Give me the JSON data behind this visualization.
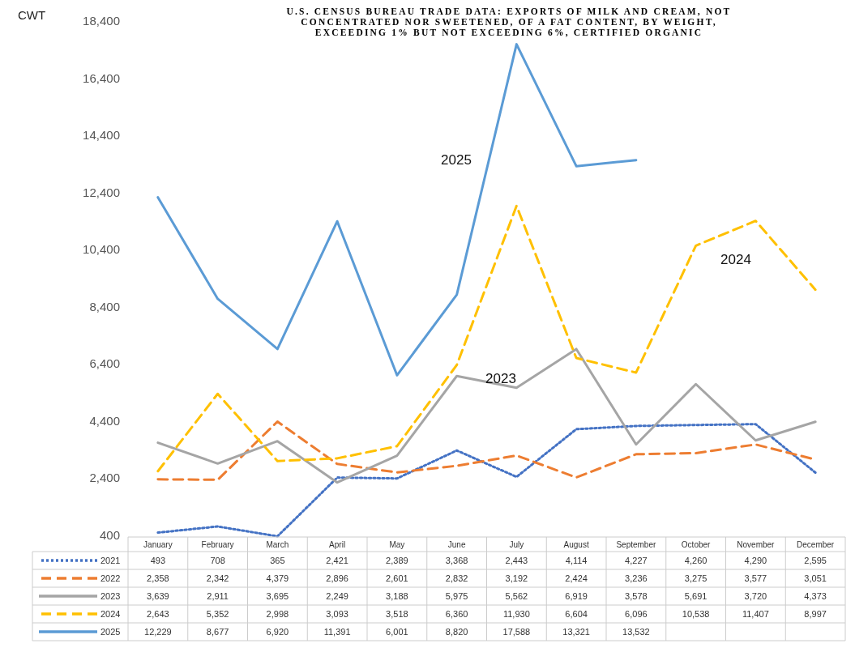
{
  "chart_data": {
    "type": "line",
    "title": "U.S. CENSUS BUREAU TRADE DATA: EXPORTS OF MILK AND CREAM, NOT CONCENTRATED NOR SWEETENED, OF A FAT CONTENT, BY WEIGHT, EXCEEDING 1% BUT NOT EXCEEDING 6%, CERTIFIED ORGANIC",
    "ylabel": "CWT",
    "categories": [
      "January",
      "February",
      "March",
      "April",
      "May",
      "June",
      "July",
      "August",
      "September",
      "October",
      "November",
      "December"
    ],
    "series": [
      {
        "name": "2021",
        "color": "#4472c4",
        "line_style": "dotted",
        "values": [
          493,
          708,
          365,
          2421,
          2389,
          3368,
          2443,
          4114,
          4227,
          4260,
          4290,
          2595
        ],
        "value_labels": [
          "493",
          "708",
          "365",
          "2,421",
          "2,389",
          "3,368",
          "2,443",
          "4,114",
          "4,227",
          "4,260",
          "4,290",
          "2,595"
        ]
      },
      {
        "name": "2022",
        "color": "#ed7d31",
        "line_style": "dashed",
        "values": [
          2358,
          2342,
          4379,
          2896,
          2601,
          2832,
          3192,
          2424,
          3236,
          3275,
          3577,
          3051
        ],
        "value_labels": [
          "2,358",
          "2,342",
          "4,379",
          "2,896",
          "2,601",
          "2,832",
          "3,192",
          "2,424",
          "3,236",
          "3,275",
          "3,577",
          "3,051"
        ]
      },
      {
        "name": "2023",
        "color": "#a5a5a5",
        "line_style": "solid",
        "values": [
          3639,
          2911,
          3695,
          2249,
          3188,
          5975,
          5562,
          6919,
          3578,
          5691,
          3720,
          4373
        ],
        "value_labels": [
          "3,639",
          "2,911",
          "3,695",
          "2,249",
          "3,188",
          "5,975",
          "5,562",
          "6,919",
          "3,578",
          "5,691",
          "3,720",
          "4,373"
        ]
      },
      {
        "name": "2024",
        "color": "#ffc000",
        "line_style": "dashed",
        "values": [
          2643,
          5352,
          2998,
          3093,
          3518,
          6360,
          11930,
          6604,
          6096,
          10538,
          11407,
          8997
        ],
        "value_labels": [
          "2,643",
          "5,352",
          "2,998",
          "3,093",
          "3,518",
          "6,360",
          "11,930",
          "6,604",
          "6,096",
          "10,538",
          "11,407",
          "8,997"
        ]
      },
      {
        "name": "2025",
        "color": "#5b9bd5",
        "line_style": "solid",
        "values": [
          12229,
          8677,
          6920,
          11391,
          6001,
          8820,
          17588,
          13321,
          13532,
          null,
          null,
          null
        ],
        "value_labels": [
          "12,229",
          "8,677",
          "6,920",
          "11,391",
          "6,001",
          "8,820",
          "17,588",
          "13,321",
          "13,532",
          null,
          null,
          null
        ]
      }
    ],
    "annotations": [
      "2025",
      "2023",
      "2024"
    ],
    "ylim": [
      340,
      18400
    ],
    "yticks": [
      {
        "value": 400,
        "label": "400"
      },
      {
        "value": 2400,
        "label": "2,400"
      },
      {
        "value": 4400,
        "label": "4,400"
      },
      {
        "value": 6400,
        "label": "6,400"
      },
      {
        "value": 8400,
        "label": "8,400"
      },
      {
        "value": 10400,
        "label": "10,400"
      },
      {
        "value": 12400,
        "label": "12,400"
      },
      {
        "value": 14400,
        "label": "14,400"
      },
      {
        "value": 16400,
        "label": "16,400"
      },
      {
        "value": 18400,
        "label": "18,400"
      }
    ],
    "legend": "bottom",
    "marker": "none"
  }
}
